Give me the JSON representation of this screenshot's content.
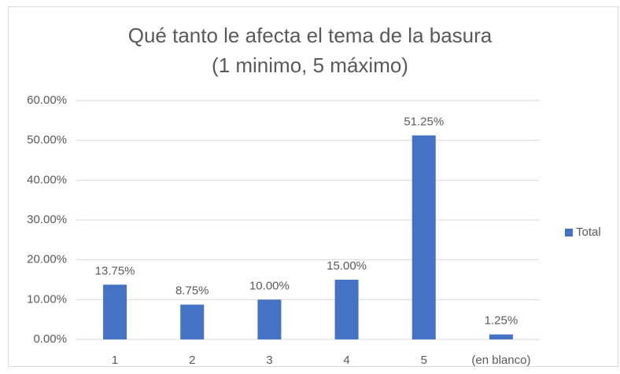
{
  "chart_data": {
    "type": "bar",
    "title": "Qué tanto le afecta el tema de la basura (1 minimo, 5 máximo)",
    "categories": [
      "1",
      "2",
      "3",
      "4",
      "5",
      "(en blanco)"
    ],
    "series": [
      {
        "name": "Total",
        "color": "#4472c4",
        "values": [
          13.75,
          8.75,
          10,
          15,
          51.25,
          1.25
        ],
        "value_labels": [
          "13.75%",
          "8.75%",
          "10.00%",
          "15.00%",
          "51.25%",
          "1.25%"
        ]
      }
    ],
    "ylim": [
      0,
      60
    ],
    "yticks": [
      {
        "value": 0,
        "label": "0.00%"
      },
      {
        "value": 10,
        "label": "10.00%"
      },
      {
        "value": 20,
        "label": "20.00%"
      },
      {
        "value": 30,
        "label": "30.00%"
      },
      {
        "value": 40,
        "label": "40.00%"
      },
      {
        "value": 50,
        "label": "50.00%"
      },
      {
        "value": 60,
        "label": "60.00%"
      }
    ],
    "grid": true,
    "legend": "right"
  }
}
